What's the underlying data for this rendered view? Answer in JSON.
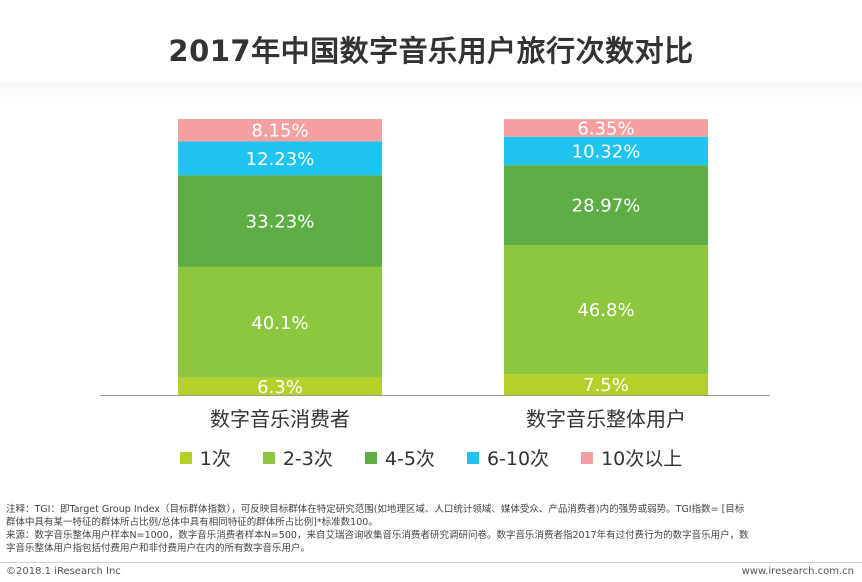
{
  "page": {
    "title": "2017年中国数字音乐用户旅行次数对比",
    "note_lines": [
      "注释：TGI：即Target Group Index（目标群体指数），可反映目标群体在特定研究范围(如地理区域、人口统计领域、媒体受众、产品消费者)内的强势或弱势。TGI指数= [目标",
      "群体中具有某一特征的群体所占比例/总体中具有相同特征的群体所占比例]*标准数100。",
      "来源：数字音乐整体用户样本N=1000，数字音乐消费者样本N=500，来自艾瑞咨询收集音乐消费者研究调研问卷。数字音乐消费者指2017年有过付费行为的数字音乐用户，数",
      "字音乐整体用户指包括付费用户和非付费用户在内的所有数字音乐用户。"
    ],
    "footer_left": "©2018.1 iResearch Inc",
    "footer_right": "www.iresearch.com.cn"
  },
  "chart_data": {
    "type": "bar",
    "stacked": true,
    "title": "2017年中国数字音乐用户旅行次数对比",
    "categories": [
      "数字音乐消费者",
      "数字音乐整体用户"
    ],
    "series": [
      {
        "name": "1次",
        "color": "#b5cf2b",
        "values": [
          6.3,
          7.5
        ],
        "labels": [
          "6.3%",
          "7.5%"
        ]
      },
      {
        "name": "2-3次",
        "color": "#8dc63f",
        "values": [
          40.1,
          46.8
        ],
        "labels": [
          "40.1%",
          "46.8%"
        ]
      },
      {
        "name": "4-5次",
        "color": "#5fad45",
        "values": [
          33.23,
          28.97
        ],
        "labels": [
          "33.23%",
          "28.97%"
        ]
      },
      {
        "name": "6-10次",
        "color": "#20c4f0",
        "values": [
          12.23,
          10.32
        ],
        "labels": [
          "12.23%",
          "10.32%"
        ]
      },
      {
        "name": "10次以上",
        "color": "#f5a0a0",
        "values": [
          8.15,
          6.35
        ],
        "labels": [
          "8.15%",
          "6.35%"
        ]
      }
    ],
    "ylim": [
      0,
      100
    ],
    "legend_position": "bottom",
    "grid": false
  }
}
